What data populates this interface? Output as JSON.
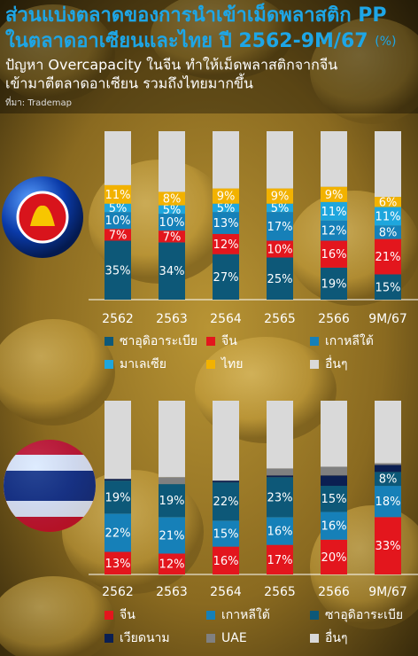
{
  "header": {
    "title": [
      "ส่วนแบ่งตลาดของการนำเข้าเม็ดพลาสติก PP",
      "ในตลาดอาเซียนและไทย ปี 2562-9M/67"
    ],
    "unit": "(%)",
    "subtitle": [
      "ปัญหา Overcapacity ในจีน ทำให้เม็ดพลาสติกจากจีน",
      "เข้ามาตีตลาดอาเซียน รวมถึงไทยมากขึ้น"
    ],
    "source": "ที่มา: Trademap"
  },
  "chart_data": [
    {
      "type": "bar",
      "stacked": true,
      "ylim": [
        0,
        100
      ],
      "categories": [
        "2562",
        "2563",
        "2564",
        "2565",
        "2566",
        "9M/67"
      ],
      "series": [
        {
          "name": "ซาอุดิอาระเบีย",
          "color": "#0d5878",
          "values": [
            35,
            34,
            27,
            25,
            19,
            15
          ],
          "value_labels": [
            "35%",
            "34%",
            "27%",
            "25%",
            "19%",
            "15%"
          ]
        },
        {
          "name": "จีน",
          "color": "#e3161d",
          "values": [
            7,
            7,
            12,
            10,
            16,
            21
          ],
          "value_labels": [
            "7%",
            "7%",
            "12%",
            "10%",
            "16%",
            "21%"
          ]
        },
        {
          "name": "เกาหลีใต้",
          "color": "#1680b8",
          "values": [
            10,
            10,
            13,
            17,
            12,
            8
          ],
          "value_labels": [
            "10%",
            "10%",
            "13%",
            "17%",
            "12%",
            "8%"
          ]
        },
        {
          "name": "มาเลเซีย",
          "color": "#1ea6dd",
          "values": [
            5,
            5,
            5,
            5,
            11,
            11
          ],
          "value_labels": [
            "5%",
            "5%",
            "5%",
            "5%",
            "11%",
            "11%"
          ]
        },
        {
          "name": "ไทย",
          "color": "#f2b200",
          "values": [
            11,
            8,
            9,
            9,
            9,
            6
          ],
          "value_labels": [
            "11%",
            "8%",
            "9%",
            "9%",
            "9%",
            "6%"
          ]
        },
        {
          "name": "อื่นๆ",
          "color": "#d9d9d9",
          "values": [
            32,
            36,
            34,
            34,
            33,
            39
          ]
        }
      ]
    },
    {
      "type": "bar",
      "stacked": true,
      "ylim": [
        0,
        100
      ],
      "categories": [
        "2562",
        "2563",
        "2564",
        "2565",
        "2566",
        "9M/67"
      ],
      "series": [
        {
          "name": "จีน",
          "color": "#e3161d",
          "values": [
            13,
            12,
            16,
            17,
            20,
            33
          ],
          "value_labels": [
            "13%",
            "12%",
            "16%",
            "17%",
            "20%",
            "33%"
          ]
        },
        {
          "name": "เกาหลีใต้",
          "color": "#1680b8",
          "values": [
            22,
            21,
            15,
            16,
            16,
            18
          ],
          "value_labels": [
            "22%",
            "21%",
            "15%",
            "16%",
            "16%",
            "18%"
          ]
        },
        {
          "name": "ซาอุดิอาระเบีย",
          "color": "#0d5878",
          "values": [
            19,
            19,
            22,
            23,
            15,
            8
          ],
          "value_labels": [
            "19%",
            "19%",
            "22%",
            "23%",
            "15%",
            "8%"
          ]
        },
        {
          "name": "เวียดนาม",
          "color": "#0b1f52",
          "values": [
            1,
            0,
            1,
            1,
            6,
            4
          ]
        },
        {
          "name": "UAE",
          "color": "#808080",
          "values": [
            0,
            4,
            0,
            4,
            5,
            1
          ]
        },
        {
          "name": "อื่นๆ",
          "color": "#d9d9d9",
          "values": [
            45,
            44,
            46,
            39,
            38,
            36
          ]
        }
      ]
    }
  ]
}
